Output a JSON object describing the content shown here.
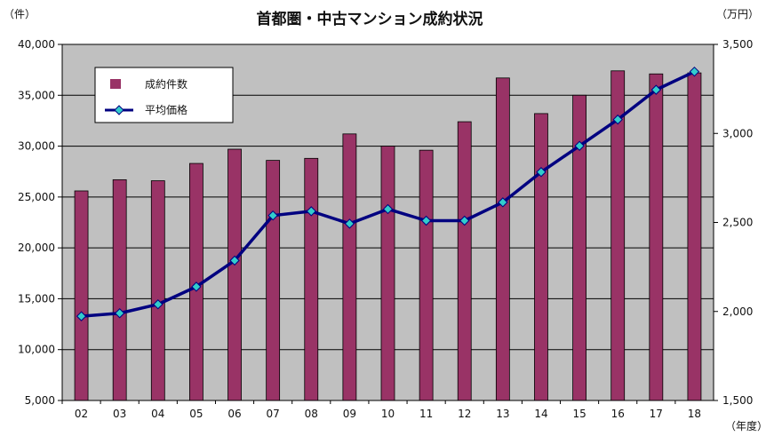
{
  "chart_data": {
    "type": "bar+line",
    "title": "首都圏・中古マンション成約状況",
    "categories": [
      "02",
      "03",
      "04",
      "05",
      "06",
      "07",
      "08",
      "09",
      "10",
      "11",
      "12",
      "13",
      "14",
      "15",
      "16",
      "17",
      "18"
    ],
    "series": [
      {
        "name": "成約件数",
        "type": "bar",
        "axis": "left",
        "color": "#993366",
        "values": [
          25600,
          26700,
          26600,
          28300,
          29700,
          28600,
          28800,
          31200,
          30000,
          29600,
          32400,
          36700,
          33200,
          35000,
          37400,
          37100,
          37200
        ]
      },
      {
        "name": "平均価格",
        "type": "line",
        "axis": "right",
        "color": "#000080",
        "marker_color": "#33CCCC",
        "values": [
          1973,
          1990,
          2040,
          2139,
          2286,
          2539,
          2563,
          2493,
          2575,
          2510,
          2510,
          2613,
          2783,
          2930,
          3078,
          3245,
          3347
        ]
      }
    ],
    "y_left": {
      "unit": "（件）",
      "lim": [
        5000,
        40000
      ],
      "ticks": [
        "5,000",
        "10,000",
        "15,000",
        "20,000",
        "25,000",
        "30,000",
        "35,000",
        "40,000"
      ]
    },
    "y_right": {
      "unit": "（万円）",
      "lim": [
        1500,
        3500
      ],
      "ticks": [
        "1,500",
        "2,000",
        "2,500",
        "3,000",
        "3,500"
      ]
    },
    "x_unit": "（年度）",
    "plot_background": "#C0C0C0",
    "grid": true,
    "legend_position": "top-left"
  }
}
